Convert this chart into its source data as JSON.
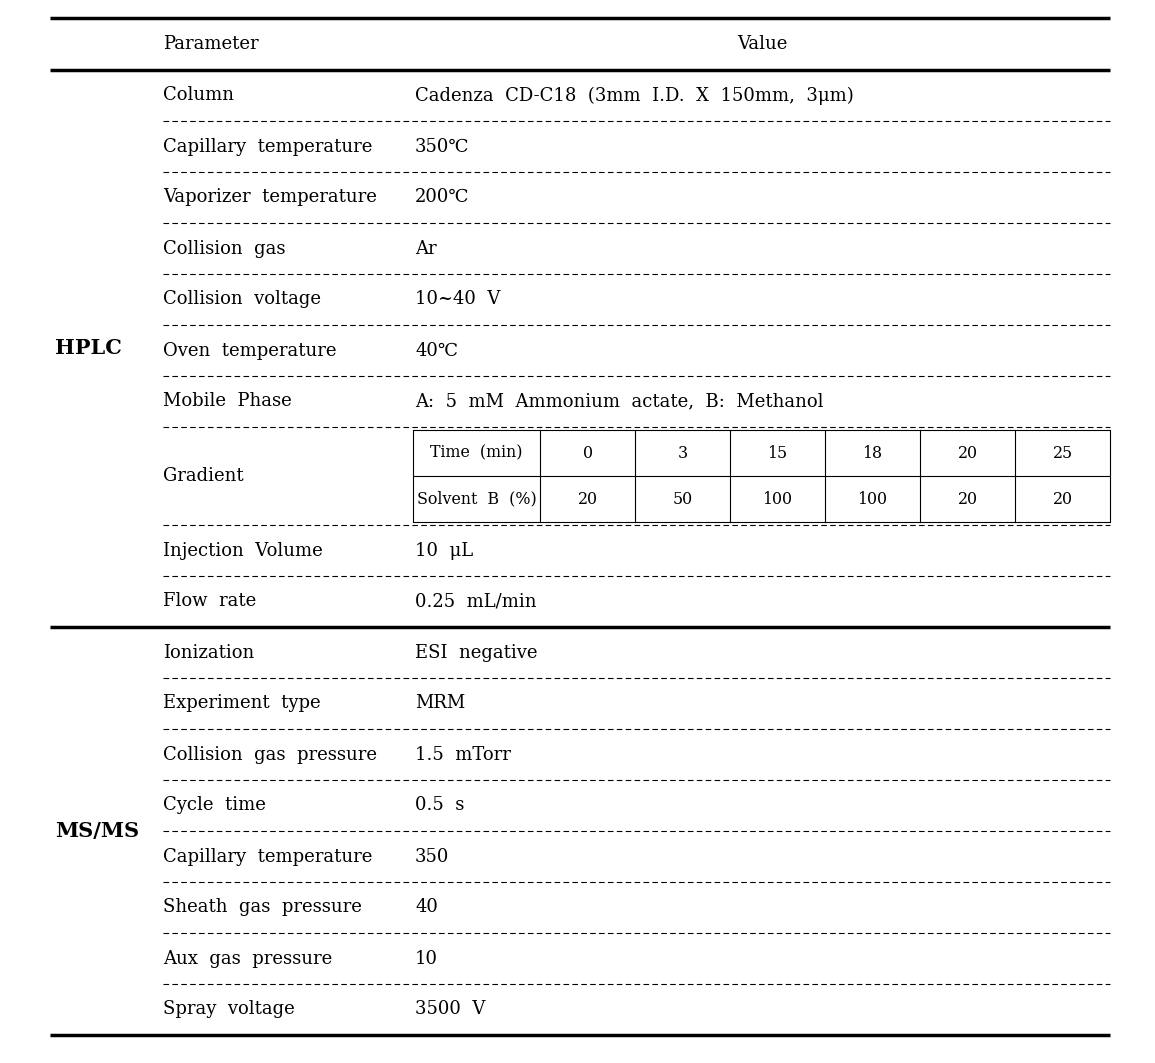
{
  "bg_color": "#ffffff",
  "text_color": "#000000",
  "hplc_label": "HPLC",
  "msms_label": "MS/MS",
  "hplc_rows": [
    [
      "Column",
      "Cadenza  CD-C18  (3mm  I.D.  X  150mm,  3μm)"
    ],
    [
      "Capillary  temperature",
      "350℃"
    ],
    [
      "Vaporizer  temperature",
      "200℃"
    ],
    [
      "Collision  gas",
      "Ar"
    ],
    [
      "Collision  voltage",
      "10~40  V"
    ],
    [
      "Oven  temperature",
      "40℃"
    ],
    [
      "Mobile  Phase",
      "A:  5  mM  Ammonium  actate,  B:  Methanol"
    ],
    [
      "Gradient",
      ""
    ],
    [
      "Injection  Volume",
      "10  μL"
    ],
    [
      "Flow  rate",
      "0.25  mL/min"
    ]
  ],
  "msms_rows": [
    [
      "Ionization",
      "ESI  negative"
    ],
    [
      "Experiment  type",
      "MRM"
    ],
    [
      "Collision  gas  pressure",
      "1.5  mTorr"
    ],
    [
      "Cycle  time",
      "0.5  s"
    ],
    [
      "Capillary  temperature",
      "350"
    ],
    [
      "Sheath  gas  pressure",
      "40"
    ],
    [
      "Aux  gas  pressure",
      "10"
    ],
    [
      "Spray  voltage",
      "3500  V"
    ]
  ],
  "gradient_time_labels": [
    "Time  (min)",
    "0",
    "3",
    "15",
    "18",
    "20",
    "25"
  ],
  "gradient_solvent_labels": [
    "Solvent  B  (%)",
    "20",
    "50",
    "100",
    "100",
    "20",
    "20"
  ],
  "font_size": 13.0,
  "font_family": "DejaVu Serif",
  "param_col_label": "Parameter",
  "value_col_label": "Value"
}
